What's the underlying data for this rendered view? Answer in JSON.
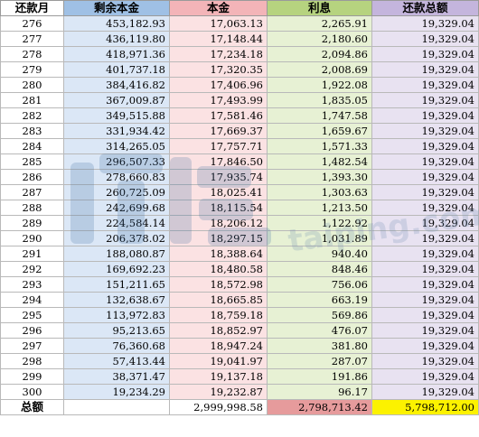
{
  "header": [
    "还款月",
    "剩余本金",
    "本金",
    "利息",
    "还款总额"
  ],
  "rows": [
    [
      "276",
      "453,182.93",
      "17,063.13",
      "2,265.91",
      "19,329.04"
    ],
    [
      "277",
      "436,119.80",
      "17,148.44",
      "2,180.60",
      "19,329.04"
    ],
    [
      "278",
      "418,971.36",
      "17,234.18",
      "2,094.86",
      "19,329.04"
    ],
    [
      "279",
      "401,737.18",
      "17,320.35",
      "2,008.69",
      "19,329.04"
    ],
    [
      "280",
      "384,416.82",
      "17,406.96",
      "1,922.08",
      "19,329.04"
    ],
    [
      "281",
      "367,009.87",
      "17,493.99",
      "1,835.05",
      "19,329.04"
    ],
    [
      "282",
      "349,515.88",
      "17,581.46",
      "1,747.58",
      "19,329.04"
    ],
    [
      "283",
      "331,934.42",
      "17,669.37",
      "1,659.67",
      "19,329.04"
    ],
    [
      "284",
      "314,265.05",
      "17,757.71",
      "1,571.33",
      "19,329.04"
    ],
    [
      "285",
      "296,507.33",
      "17,846.50",
      "1,482.54",
      "19,329.04"
    ],
    [
      "286",
      "278,660.83",
      "17,935.74",
      "1,393.30",
      "19,329.04"
    ],
    [
      "287",
      "260,725.09",
      "18,025.41",
      "1,303.63",
      "19,329.04"
    ],
    [
      "288",
      "242,699.68",
      "18,115.54",
      "1,213.50",
      "19,329.04"
    ],
    [
      "289",
      "224,584.14",
      "18,206.12",
      "1,122.92",
      "19,329.04"
    ],
    [
      "290",
      "206,378.02",
      "18,297.15",
      "1,031.89",
      "19,329.04"
    ],
    [
      "291",
      "188,080.87",
      "18,388.64",
      "940.40",
      "19,329.04"
    ],
    [
      "292",
      "169,692.23",
      "18,480.58",
      "848.46",
      "19,329.04"
    ],
    [
      "293",
      "151,211.65",
      "18,572.98",
      "756.06",
      "19,329.04"
    ],
    [
      "294",
      "132,638.67",
      "18,665.85",
      "663.19",
      "19,329.04"
    ],
    [
      "295",
      "113,972.83",
      "18,759.18",
      "569.86",
      "19,329.04"
    ],
    [
      "296",
      "95,213.65",
      "18,852.97",
      "476.07",
      "19,329.04"
    ],
    [
      "297",
      "76,360.68",
      "18,947.24",
      "381.80",
      "19,329.04"
    ],
    [
      "298",
      "57,413.44",
      "19,041.97",
      "287.07",
      "19,329.04"
    ],
    [
      "299",
      "38,371.47",
      "19,137.18",
      "191.86",
      "19,329.04"
    ],
    [
      "300",
      "19,234.29",
      "19,232.87",
      "96.17",
      "19,329.04"
    ]
  ],
  "totals": {
    "label": "总额",
    "remaining": "",
    "principal": "2,999,998.58",
    "interest": "2,798,713.42",
    "total": "5,798,712.00"
  },
  "watermark": {
    "logo_text": "",
    "domain": "taiping.com"
  },
  "colors": {
    "remaining_header": "#9fc0e5",
    "principal_header": "#f3b4b8",
    "interest_header": "#b6d37f",
    "total_header": "#c4b5dd",
    "interest_total_bg": "#e69b9c",
    "grand_total_bg": "#fcf200"
  }
}
